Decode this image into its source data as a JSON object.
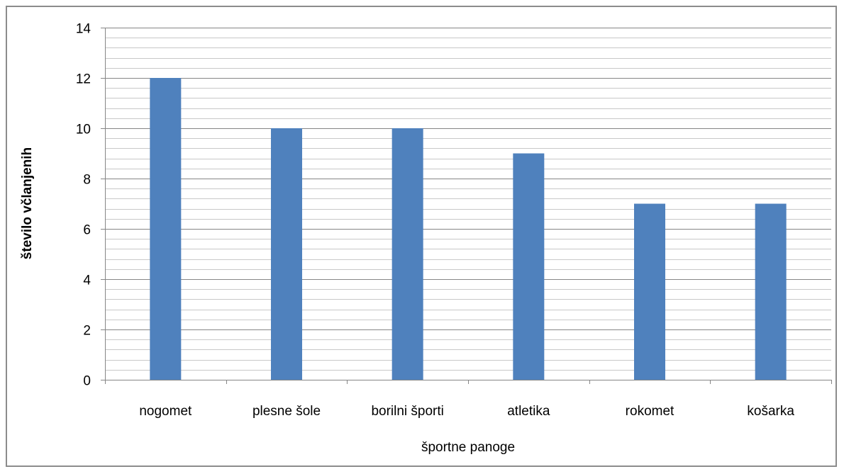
{
  "chart_data": {
    "type": "bar",
    "categories": [
      "nogomet",
      "plesne šole",
      "borilni športi",
      "atletika",
      "rokomet",
      "košarka"
    ],
    "values": [
      12,
      10,
      10,
      9,
      7,
      7
    ],
    "title": "",
    "xlabel": "športne panoge",
    "ylabel": "število včlanjenih",
    "ylim": [
      0,
      14
    ],
    "y_major_step": 2,
    "y_minor_step": 0.4,
    "grid": true,
    "legend": "none",
    "colors": {
      "bar": "#4F81BD",
      "major_grid": "#868686",
      "minor_grid": "#c8c8c8",
      "frame": "#8c8c8c"
    }
  }
}
